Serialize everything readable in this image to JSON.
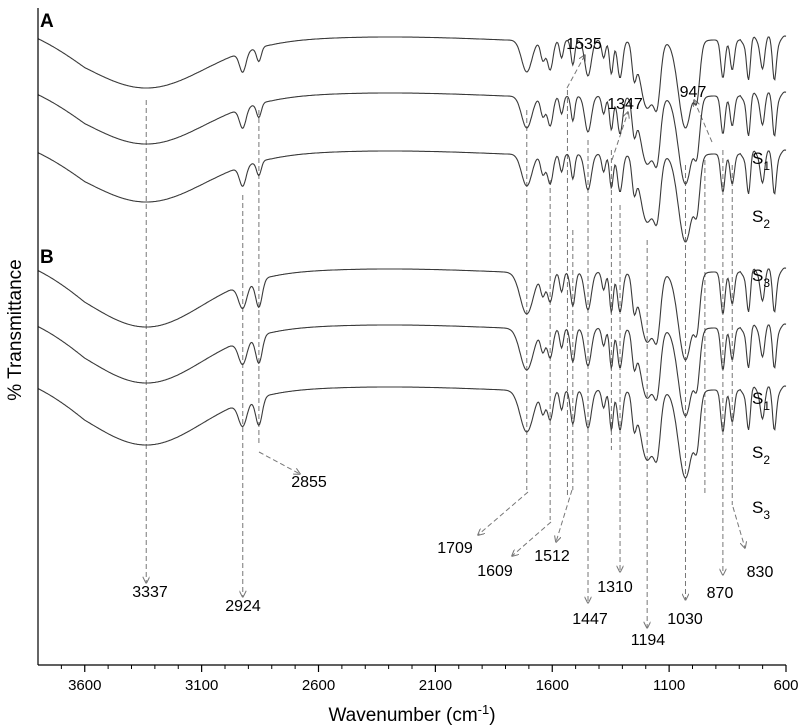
{
  "chart_data": {
    "type": "line",
    "title": "",
    "xlabel": "Wavenumber (cm",
    "xlabel_sup": "-1",
    "xlabel_close": ")",
    "ylabel": "% Transmittance",
    "xlim": [
      3800,
      600
    ],
    "x_reversed": true,
    "xticks": [
      3600,
      3100,
      2600,
      2100,
      1600,
      1100,
      600
    ],
    "xtick_labels": [
      "3600",
      "3100",
      "2600",
      "2100",
      "1600",
      "1100",
      "600"
    ],
    "panels": [
      {
        "label": "A",
        "series": [
          {
            "name": "S",
            "sub": "1"
          },
          {
            "name": "S",
            "sub": "2"
          },
          {
            "name": "S",
            "sub": "3"
          }
        ]
      },
      {
        "label": "B",
        "series": [
          {
            "name": "S",
            "sub": "1"
          },
          {
            "name": "S",
            "sub": "2"
          },
          {
            "name": "S",
            "sub": "3"
          }
        ]
      }
    ],
    "annotations": [
      {
        "wavenumber": 3337,
        "label": "3337"
      },
      {
        "wavenumber": 2924,
        "label": "2924"
      },
      {
        "wavenumber": 2855,
        "label": "2855"
      },
      {
        "wavenumber": 1709,
        "label": "1709"
      },
      {
        "wavenumber": 1609,
        "label": "1609"
      },
      {
        "wavenumber": 1535,
        "label": "1535"
      },
      {
        "wavenumber": 1512,
        "label": "1512"
      },
      {
        "wavenumber": 1447,
        "label": "1447"
      },
      {
        "wavenumber": 1347,
        "label": "1347"
      },
      {
        "wavenumber": 1310,
        "label": "1310"
      },
      {
        "wavenumber": 1194,
        "label": "1194"
      },
      {
        "wavenumber": 1030,
        "label": "1030"
      },
      {
        "wavenumber": 947,
        "label": "947"
      },
      {
        "wavenumber": 870,
        "label": "870"
      },
      {
        "wavenumber": 830,
        "label": "830"
      }
    ]
  }
}
